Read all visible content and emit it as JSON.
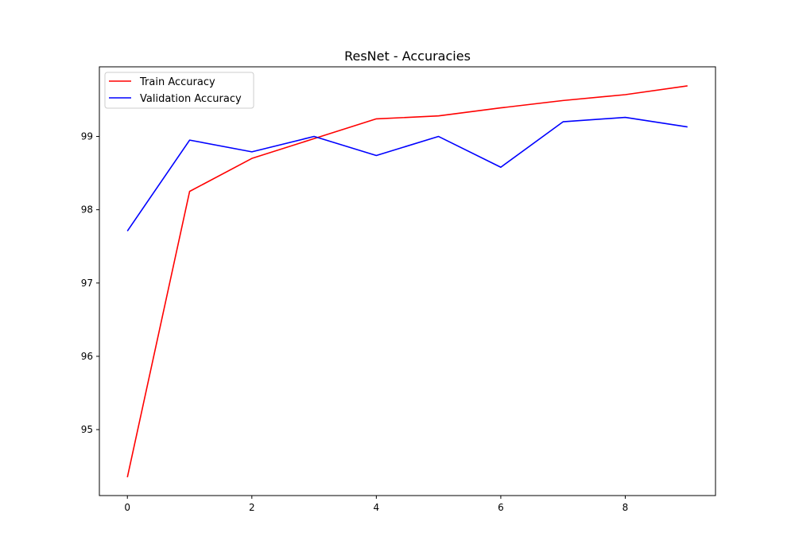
{
  "chart_data": {
    "type": "line",
    "title": "ResNet - Accuracies",
    "xlabel": "",
    "ylabel": "",
    "x": [
      0,
      1,
      2,
      3,
      4,
      5,
      6,
      7,
      8,
      9
    ],
    "xlim": [
      -0.45,
      9.45
    ],
    "ylim": [
      94.1,
      99.95
    ],
    "xticks": [
      0,
      2,
      4,
      6,
      8
    ],
    "yticks": [
      95,
      96,
      97,
      98,
      99
    ],
    "grid": false,
    "legend_position": "top-left",
    "series": [
      {
        "name": "Train Accuracy",
        "color": "#ff0000",
        "values": [
          94.35,
          98.25,
          98.7,
          98.97,
          99.24,
          99.28,
          99.39,
          99.49,
          99.57,
          99.69
        ]
      },
      {
        "name": "Validation Accuracy",
        "color": "#0000ff",
        "values": [
          97.71,
          98.95,
          98.79,
          99.0,
          98.74,
          99.0,
          98.58,
          99.2,
          99.26,
          99.13
        ]
      }
    ]
  }
}
